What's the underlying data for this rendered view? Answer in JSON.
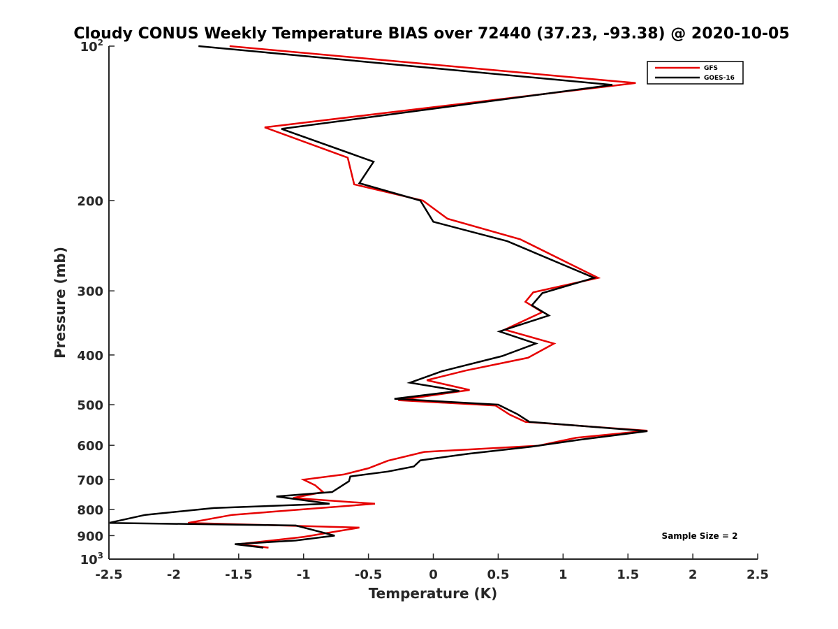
{
  "chart_data": {
    "type": "line",
    "title": "Cloudy CONUS Weekly Temperature BIAS over 72440 (37.23, -93.38) @ 2020-10-05",
    "xlabel": "Temperature (K)",
    "ylabel": "Pressure (mb)",
    "xlim": [
      -2.5,
      2.5
    ],
    "ylim": [
      100,
      1000
    ],
    "y_scale": "log",
    "y_reversed": true,
    "grid": false,
    "legend_position": "top-right",
    "x_ticks": [
      -2.5,
      -2,
      -1.5,
      -1,
      -0.5,
      0,
      0.5,
      1,
      1.5,
      2,
      2.5
    ],
    "x_tick_labels": [
      "-2.5",
      "-2",
      "-1.5",
      "-1",
      "-0.5",
      "0",
      "0.5",
      "1",
      "1.5",
      "2",
      "2.5"
    ],
    "y_ticks": [
      100,
      200,
      300,
      400,
      500,
      600,
      700,
      800,
      900,
      1000
    ],
    "y_tick_labels": [
      {
        "base": "10",
        "exp": "2"
      },
      {
        "base": "200",
        "exp": ""
      },
      {
        "base": "300",
        "exp": ""
      },
      {
        "base": "400",
        "exp": ""
      },
      {
        "base": "500",
        "exp": ""
      },
      {
        "base": "600",
        "exp": ""
      },
      {
        "base": "700",
        "exp": ""
      },
      {
        "base": "800",
        "exp": ""
      },
      {
        "base": "900",
        "exp": ""
      },
      {
        "base": "10",
        "exp": "3"
      }
    ],
    "annotation": "Sample Size = 2",
    "series": [
      {
        "name": "GFS",
        "color": "#e60000",
        "points": [
          [
            -1.57,
            100
          ],
          [
            1.56,
            118
          ],
          [
            -1.3,
            144
          ],
          [
            -0.66,
            165
          ],
          [
            -0.61,
            186
          ],
          [
            -0.08,
            200
          ],
          [
            0.11,
            217
          ],
          [
            0.67,
            238
          ],
          [
            1.27,
            283
          ],
          [
            0.77,
            302
          ],
          [
            0.71,
            315
          ],
          [
            0.84,
            330
          ],
          [
            0.55,
            357
          ],
          [
            0.93,
            380
          ],
          [
            0.73,
            405
          ],
          [
            0.25,
            429
          ],
          [
            -0.05,
            448
          ],
          [
            0.28,
            468
          ],
          [
            -0.27,
            490
          ],
          [
            0.48,
            502
          ],
          [
            0.59,
            523
          ],
          [
            0.71,
            540
          ],
          [
            1.65,
            562
          ],
          [
            1.1,
            580
          ],
          [
            0.81,
            601
          ],
          [
            -0.07,
            618
          ],
          [
            -0.35,
            643
          ],
          [
            -0.5,
            665
          ],
          [
            -0.69,
            684
          ],
          [
            -1.0,
            700
          ],
          [
            -0.91,
            718
          ],
          [
            -0.85,
            740
          ],
          [
            -1.08,
            760
          ],
          [
            -0.45,
            780
          ],
          [
            -1.55,
            820
          ],
          [
            -1.89,
            850
          ],
          [
            -0.57,
            868
          ],
          [
            -1.0,
            905
          ],
          [
            -1.5,
            935
          ],
          [
            -1.27,
            950
          ]
        ]
      },
      {
        "name": "GOES-16",
        "color": "#000000",
        "points": [
          [
            -1.81,
            100
          ],
          [
            1.38,
            119
          ],
          [
            -1.17,
            145
          ],
          [
            -0.46,
            168
          ],
          [
            -0.57,
            185
          ],
          [
            -0.1,
            200
          ],
          [
            0.0,
            220
          ],
          [
            0.57,
            240
          ],
          [
            1.24,
            283
          ],
          [
            0.84,
            303
          ],
          [
            0.76,
            320
          ],
          [
            0.89,
            335
          ],
          [
            0.51,
            360
          ],
          [
            0.79,
            380
          ],
          [
            0.53,
            402
          ],
          [
            0.07,
            430
          ],
          [
            -0.18,
            453
          ],
          [
            0.2,
            470
          ],
          [
            -0.3,
            487
          ],
          [
            0.5,
            500
          ],
          [
            0.65,
            522
          ],
          [
            0.74,
            540
          ],
          [
            1.65,
            563
          ],
          [
            1.13,
            585
          ],
          [
            0.75,
            604
          ],
          [
            0.27,
            623
          ],
          [
            -0.1,
            642
          ],
          [
            -0.15,
            660
          ],
          [
            -0.35,
            675
          ],
          [
            -0.64,
            690
          ],
          [
            -0.65,
            705
          ],
          [
            -0.78,
            740
          ],
          [
            -1.21,
            755
          ],
          [
            -0.8,
            780
          ],
          [
            -1.69,
            795
          ],
          [
            -2.22,
            820
          ],
          [
            -2.5,
            850
          ],
          [
            -1.06,
            860
          ],
          [
            -0.76,
            900
          ],
          [
            -1.06,
            920
          ],
          [
            -1.53,
            935
          ],
          [
            -1.31,
            950
          ]
        ]
      }
    ]
  }
}
